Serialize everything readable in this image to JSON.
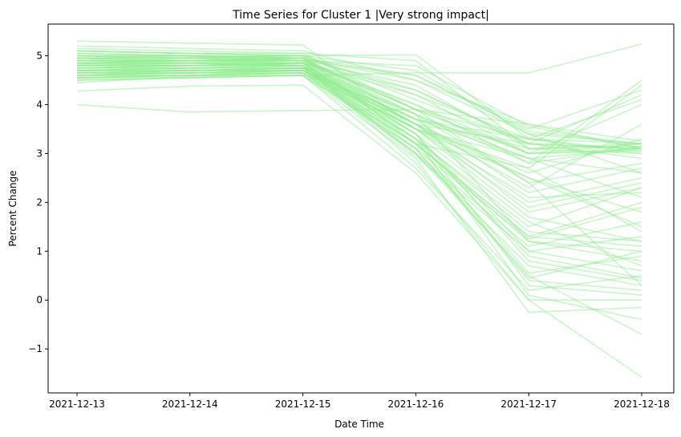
{
  "chart_data": {
    "type": "line",
    "title": "Time Series for Cluster 1 |Very strong impact|",
    "xlabel": "Date Time",
    "ylabel": "Percent Change",
    "categories": [
      "2021-12-13",
      "2021-12-14",
      "2021-12-15",
      "2021-12-16",
      "2021-12-17",
      "2021-12-18"
    ],
    "ylim": [
      -1.9,
      5.65
    ],
    "yticks": [
      -1,
      0,
      1,
      2,
      3,
      4,
      5
    ],
    "ytick_labels": [
      "−1",
      "0",
      "1",
      "2",
      "3",
      "4",
      "5"
    ],
    "grid": false,
    "legend": "none",
    "line_color": "#90ee90",
    "series": [
      {
        "values": [
          4.0,
          3.85,
          3.88,
          3.9,
          2.4,
          0.3
        ]
      },
      {
        "values": [
          4.82,
          4.97,
          5.0,
          5.02,
          3.3,
          3.2
        ]
      },
      {
        "values": [
          4.45,
          4.58,
          4.6,
          4.65,
          4.65,
          5.24
        ]
      },
      {
        "values": [
          4.28,
          4.38,
          4.4,
          2.6,
          0.0,
          -1.58
        ]
      },
      {
        "values": [
          5.3,
          5.26,
          5.22,
          3.5,
          2.9,
          3.1
        ]
      },
      {
        "values": [
          4.85,
          4.9,
          4.85,
          4.3,
          3.2,
          4.2
        ]
      },
      {
        "values": [
          4.6,
          4.7,
          4.75,
          3.8,
          2.8,
          4.5
        ]
      },
      {
        "values": [
          5.1,
          5.05,
          5.0,
          3.2,
          1.3,
          1.1
        ]
      },
      {
        "values": [
          4.9,
          4.9,
          4.95,
          3.9,
          3.6,
          3.1
        ]
      },
      {
        "values": [
          4.7,
          4.75,
          4.8,
          3.0,
          0.5,
          -0.7
        ]
      },
      {
        "values": [
          4.55,
          4.6,
          4.7,
          3.4,
          1.0,
          1.3
        ]
      },
      {
        "values": [
          4.95,
          5.0,
          4.9,
          4.0,
          3.0,
          3.2
        ]
      },
      {
        "values": [
          5.0,
          4.95,
          4.9,
          3.6,
          2.0,
          2.5
        ]
      },
      {
        "values": [
          4.8,
          4.85,
          4.8,
          3.1,
          0.4,
          0.2
        ]
      },
      {
        "values": [
          4.65,
          4.7,
          4.7,
          3.7,
          3.1,
          3.0
        ]
      },
      {
        "values": [
          4.5,
          4.55,
          4.6,
          2.9,
          -0.25,
          -0.15
        ]
      },
      {
        "values": [
          5.2,
          5.15,
          5.1,
          4.5,
          3.4,
          2.6
        ]
      },
      {
        "values": [
          4.75,
          4.8,
          4.85,
          3.3,
          1.5,
          2.3
        ]
      },
      {
        "values": [
          4.9,
          4.9,
          4.9,
          4.6,
          3.5,
          4.3
        ]
      },
      {
        "values": [
          4.6,
          4.65,
          4.7,
          3.5,
          2.5,
          1.8
        ]
      },
      {
        "values": [
          4.85,
          4.85,
          4.8,
          2.8,
          0.0,
          0.0
        ]
      },
      {
        "values": [
          5.05,
          5.0,
          4.95,
          3.8,
          1.2,
          0.8
        ]
      },
      {
        "values": [
          4.7,
          4.7,
          4.75,
          3.6,
          3.2,
          3.1
        ]
      },
      {
        "values": [
          4.55,
          4.6,
          4.65,
          3.2,
          2.7,
          1.4
        ]
      },
      {
        "values": [
          4.95,
          4.95,
          5.0,
          4.2,
          3.3,
          3.05
        ]
      },
      {
        "values": [
          4.8,
          4.8,
          4.85,
          3.4,
          0.8,
          0.4
        ]
      },
      {
        "values": [
          4.65,
          4.7,
          4.7,
          3.7,
          2.2,
          2.7
        ]
      },
      {
        "values": [
          5.15,
          5.1,
          5.05,
          3.9,
          3.0,
          4.0
        ]
      },
      {
        "values": [
          4.75,
          4.75,
          4.8,
          3.3,
          0.1,
          -0.4
        ]
      },
      {
        "values": [
          4.6,
          4.6,
          4.65,
          3.5,
          1.7,
          1.2
        ]
      },
      {
        "values": [
          4.9,
          4.85,
          4.9,
          4.4,
          3.1,
          3.2
        ]
      },
      {
        "values": [
          4.7,
          4.75,
          4.75,
          2.95,
          1.0,
          0.6
        ]
      },
      {
        "values": [
          5.0,
          5.0,
          4.95,
          3.6,
          2.3,
          3.6
        ]
      },
      {
        "values": [
          4.85,
          4.8,
          4.85,
          3.8,
          2.9,
          2.1
        ]
      },
      {
        "values": [
          4.5,
          4.55,
          4.6,
          3.1,
          1.25,
          1.9
        ]
      },
      {
        "values": [
          4.95,
          4.9,
          4.9,
          4.8,
          3.55,
          3.1
        ]
      },
      {
        "values": [
          4.75,
          4.8,
          4.8,
          3.2,
          0.55,
          0.9
        ]
      },
      {
        "values": [
          4.65,
          4.65,
          4.7,
          3.6,
          2.6,
          3.3
        ]
      },
      {
        "values": [
          5.1,
          5.05,
          5.0,
          4.1,
          3.2,
          2.9
        ]
      },
      {
        "values": [
          4.8,
          4.85,
          4.85,
          3.4,
          0.3,
          0.1
        ]
      },
      {
        "values": [
          4.6,
          4.65,
          4.7,
          3.5,
          1.9,
          2.4
        ]
      },
      {
        "values": [
          4.9,
          4.9,
          4.95,
          3.7,
          3.3,
          4.1
        ]
      },
      {
        "values": [
          4.7,
          4.7,
          4.75,
          3.0,
          1.1,
          1.6
        ]
      },
      {
        "values": [
          4.85,
          4.9,
          4.85,
          4.0,
          2.8,
          3.15
        ]
      },
      {
        "values": [
          4.55,
          4.6,
          4.65,
          3.3,
          0.9,
          0.45
        ]
      },
      {
        "values": [
          5.05,
          5.0,
          5.0,
          4.7,
          3.4,
          3.2
        ]
      },
      {
        "values": [
          4.75,
          4.75,
          4.8,
          3.5,
          2.1,
          2.2
        ]
      },
      {
        "values": [
          4.65,
          4.7,
          4.7,
          3.2,
          1.3,
          2.0
        ]
      },
      {
        "values": [
          4.95,
          4.95,
          4.9,
          3.9,
          3.0,
          3.05
        ]
      },
      {
        "values": [
          4.8,
          4.8,
          4.85,
          3.6,
          2.5,
          1.5
        ]
      },
      {
        "values": [
          4.6,
          4.6,
          4.65,
          3.1,
          0.45,
          1.0
        ]
      },
      {
        "values": [
          5.0,
          4.95,
          4.95,
          4.3,
          3.2,
          3.1
        ]
      },
      {
        "values": [
          4.7,
          4.75,
          4.75,
          3.7,
          2.9,
          2.6
        ]
      },
      {
        "values": [
          4.85,
          4.85,
          4.8,
          3.4,
          1.6,
          0.7
        ]
      },
      {
        "values": [
          4.55,
          4.6,
          4.6,
          2.7,
          0.2,
          0.5
        ]
      },
      {
        "values": [
          4.9,
          4.9,
          4.95,
          4.5,
          3.6,
          3.25
        ]
      },
      {
        "values": [
          4.75,
          4.8,
          4.8,
          3.8,
          2.4,
          2.8
        ]
      },
      {
        "values": [
          4.65,
          4.65,
          4.7,
          3.3,
          1.4,
          1.2
        ]
      },
      {
        "values": [
          5.1,
          5.05,
          5.05,
          4.9,
          3.1,
          3.15
        ]
      },
      {
        "values": [
          4.8,
          4.8,
          4.85,
          3.5,
          2.7,
          4.4
        ]
      },
      {
        "values": [
          4.6,
          4.65,
          4.65,
          3.0,
          0.7,
          0.3
        ]
      },
      {
        "values": [
          4.95,
          4.9,
          4.9,
          3.9,
          3.3,
          3.0
        ]
      },
      {
        "values": [
          4.7,
          4.7,
          4.75,
          3.6,
          1.8,
          2.3
        ]
      },
      {
        "values": [
          4.85,
          4.85,
          4.85,
          4.2,
          3.0,
          3.1
        ]
      },
      {
        "values": [
          4.55,
          4.55,
          4.6,
          3.2,
          1.2,
          1.0
        ]
      },
      {
        "values": [
          5.0,
          5.0,
          4.95,
          4.6,
          3.45,
          3.2
        ]
      }
    ]
  }
}
